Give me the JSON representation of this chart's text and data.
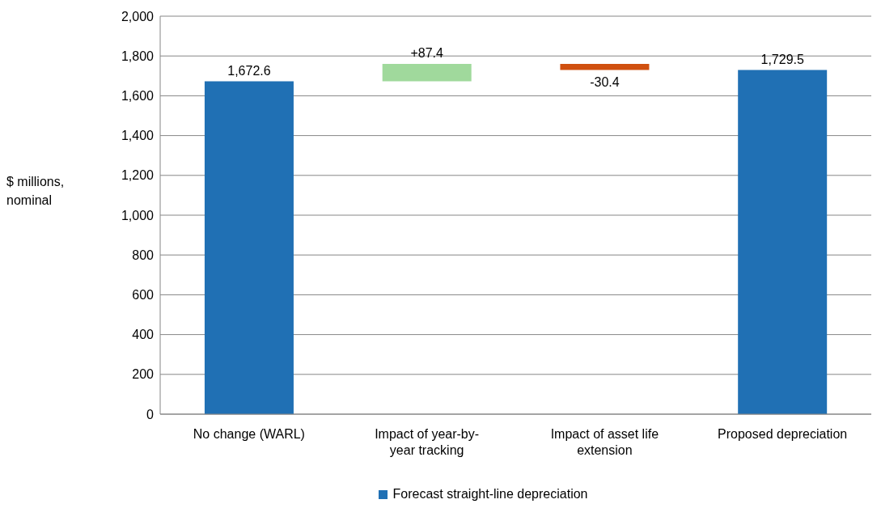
{
  "chart_data": {
    "type": "bar",
    "ylabel": "$ millions, nominal",
    "categories": [
      "No change (WARL)",
      "Impact of year-by-year tracking",
      "Impact of asset life extension",
      "Proposed depreciation"
    ],
    "series": [
      {
        "name": "Forecast straight-line depreciation",
        "color": "#2070b4",
        "base": [
          0,
          1672.6,
          1760,
          0
        ],
        "colors": [
          "#2070b4",
          "#a0d99c",
          "#d0500f",
          "#2070b4"
        ],
        "values": [
          1672.6,
          87.4,
          -30.4,
          1729.5
        ],
        "value_labels": [
          "1,672.6",
          "+87.4",
          "-30.4",
          "1,729.5"
        ]
      }
    ],
    "ylim": [
      0,
      2000
    ],
    "yticks": [
      0,
      {
        "value": 200,
        "label": "200"
      },
      {
        "value": 400,
        "label": "400"
      },
      {
        "value": 600,
        "label": "600"
      },
      {
        "value": 800,
        "label": "800"
      },
      {
        "value": 1000,
        "label": "1,000"
      },
      {
        "value": 1200,
        "label": "1,200"
      },
      {
        "value": 1400,
        "label": "1,400"
      },
      {
        "value": 1600,
        "label": "1,600"
      },
      {
        "value": 1800,
        "label": "1,800"
      },
      {
        "value": 2000,
        "label": "2,000"
      }
    ],
    "grid": "y",
    "legend": "bottom"
  }
}
